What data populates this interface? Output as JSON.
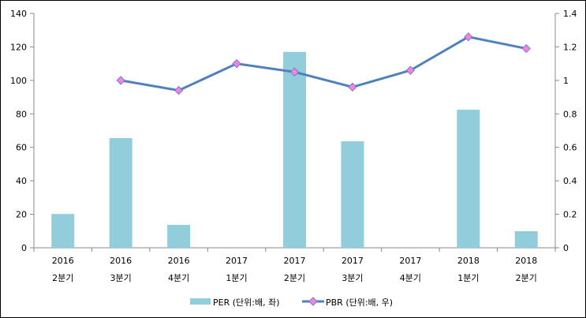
{
  "chart_data": {
    "type": "bar+line",
    "categories": [
      [
        "2016",
        "2분기"
      ],
      [
        "2016",
        "3분기"
      ],
      [
        "2016",
        "4분기"
      ],
      [
        "2017",
        "1분기"
      ],
      [
        "2017",
        "2분기"
      ],
      [
        "2017",
        "3분기"
      ],
      [
        "2017",
        "4분기"
      ],
      [
        "2018",
        "1분기"
      ],
      [
        "2018",
        "2분기"
      ]
    ],
    "series": [
      {
        "name": "PER (단위:배, 좌)",
        "type": "bar",
        "axis": "left",
        "color": "#92CDDC",
        "values": [
          20.2,
          65.5,
          13.7,
          null,
          117,
          63.6,
          null,
          82.5,
          9.9
        ]
      },
      {
        "name": "PBR (단위:배, 우)",
        "type": "line",
        "axis": "right",
        "color": "#4F81BD",
        "marker_color": "#FF80DF",
        "values": [
          null,
          1.0,
          0.94,
          1.1,
          1.05,
          0.96,
          1.06,
          1.26,
          1.19
        ]
      }
    ],
    "y_left": {
      "range": [
        0,
        140
      ],
      "ticks": [
        "0",
        "20",
        "40",
        "60",
        "80",
        "100",
        "120",
        "140"
      ]
    },
    "y_right": {
      "range": [
        0,
        1.4
      ],
      "ticks": [
        "0",
        "0.2",
        "0.4",
        "0.6",
        "0.8",
        "1",
        "1.2",
        "1.4"
      ]
    },
    "grid": false,
    "legend": "bottom"
  }
}
